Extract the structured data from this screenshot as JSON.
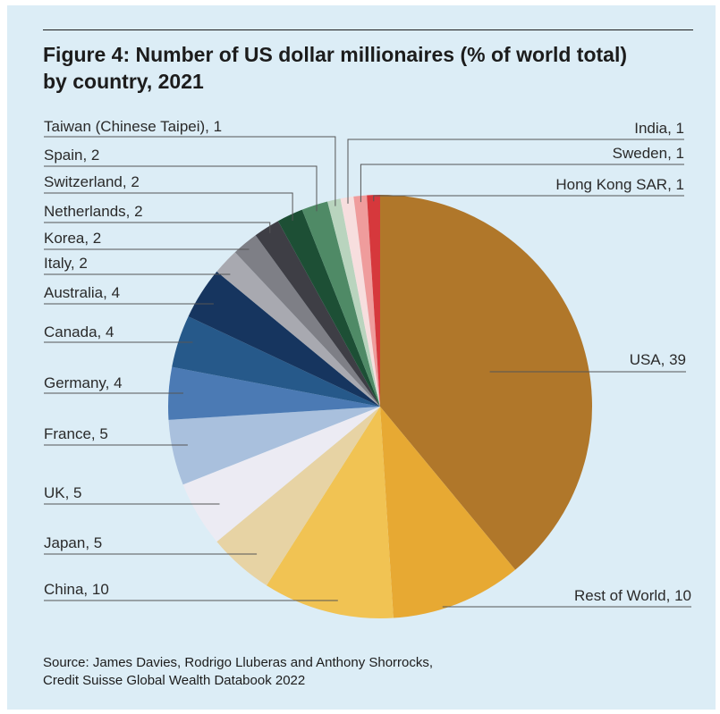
{
  "figure": {
    "title_line1": "Figure 4: Number of US dollar millionaires (% of world total)",
    "title_line2": "by country, 2021",
    "source_line1": "Source: James Davies, Rodrigo Lluberas and Anthony Shorrocks,",
    "source_line2": "Credit Suisse Global Wealth Databook 2022"
  },
  "chart_data": {
    "type": "pie",
    "title": "Figure 4: Number of US dollar millionaires (% of world total) by country, 2021",
    "unit": "% of world total",
    "start": "12 o'clock",
    "direction": "clockwise",
    "slices": [
      {
        "label": "USA",
        "value": 39,
        "display": "USA, 39",
        "color": "#b0772a"
      },
      {
        "label": "Rest of World",
        "value": 10,
        "display": "Rest of World, 10",
        "color": "#e7a933"
      },
      {
        "label": "China",
        "value": 10,
        "display": "China, 10",
        "color": "#f1c353"
      },
      {
        "label": "Japan",
        "value": 5,
        "display": "Japan, 5",
        "color": "#e7d3a4"
      },
      {
        "label": "UK",
        "value": 5,
        "display": "UK, 5",
        "color": "#ecebf3"
      },
      {
        "label": "France",
        "value": 5,
        "display": "France, 5",
        "color": "#a9c0dd"
      },
      {
        "label": "Germany",
        "value": 4,
        "display": "Germany, 4",
        "color": "#4b7ab4"
      },
      {
        "label": "Canada",
        "value": 4,
        "display": "Canada, 4",
        "color": "#26598a"
      },
      {
        "label": "Australia",
        "value": 4,
        "display": "Australia, 4",
        "color": "#16355f"
      },
      {
        "label": "Italy",
        "value": 2,
        "display": "Italy, 2",
        "color": "#a8a9b0"
      },
      {
        "label": "Korea",
        "value": 2,
        "display": "Korea, 2",
        "color": "#7e7f86"
      },
      {
        "label": "Netherlands",
        "value": 2,
        "display": "Netherlands, 2",
        "color": "#3e3e45"
      },
      {
        "label": "Switzerland",
        "value": 2,
        "display": "Switzerland, 2",
        "color": "#1d4f35"
      },
      {
        "label": "Spain",
        "value": 2,
        "display": "Spain, 2",
        "color": "#4f8a66"
      },
      {
        "label": "Taiwan (Chinese Taipei)",
        "value": 1,
        "display": "Taiwan (Chinese Taipei), 1",
        "color": "#b9d4be"
      },
      {
        "label": "India",
        "value": 1,
        "display": "India, 1",
        "color": "#f7dede"
      },
      {
        "label": "Sweden",
        "value": 1,
        "display": "Sweden, 1",
        "color": "#ef9c9c"
      },
      {
        "label": "Hong Kong SAR",
        "value": 1,
        "display": "Hong Kong SAR, 1",
        "color": "#d6383c"
      }
    ]
  }
}
